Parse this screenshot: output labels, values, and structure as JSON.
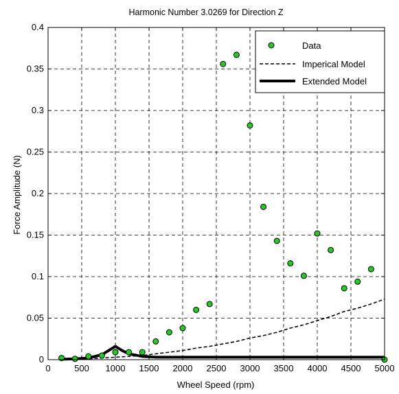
{
  "chart_data": {
    "type": "scatter",
    "title": "Harmonic Number 3.0269 for Direction Z",
    "xlabel": "Wheel Speed (rpm)",
    "ylabel": "Force Amplitude (N)",
    "xlim": [
      0,
      5000
    ],
    "ylim": [
      0,
      0.4
    ],
    "xticks": [
      "0",
      "500",
      "1000",
      "1500",
      "2000",
      "2500",
      "3000",
      "3500",
      "4000",
      "4500",
      "5000"
    ],
    "yticks": [
      "0",
      "0.05",
      "0.1",
      "0.15",
      "0.2",
      "0.25",
      "0.3",
      "0.35",
      "0.4"
    ],
    "grid": true,
    "legend_position": "top-right",
    "series": [
      {
        "name": "Data",
        "type": "scatter",
        "color": "#22cc22",
        "x": [
          200,
          400,
          600,
          800,
          1000,
          1200,
          1400,
          1600,
          1800,
          2000,
          2200,
          2400,
          2600,
          2800,
          3000,
          3200,
          3400,
          3600,
          3800,
          4000,
          4200,
          4400,
          4600,
          4800,
          5000
        ],
        "y": [
          0.002,
          0.001,
          0.004,
          0.005,
          0.009,
          0.009,
          0.009,
          0.022,
          0.033,
          0.038,
          0.06,
          0.067,
          0.356,
          0.367,
          0.282,
          0.184,
          0.143,
          0.116,
          0.101,
          0.152,
          0.132,
          0.086,
          0.094,
          0.109,
          0.0
        ]
      },
      {
        "name": "Imperical Model",
        "type": "line",
        "style": "dashed",
        "color": "#000000",
        "x": [
          200,
          400,
          600,
          800,
          1000,
          1200,
          1400,
          1600,
          1800,
          2000,
          2200,
          2400,
          2600,
          2800,
          3000,
          3200,
          3400,
          3600,
          3800,
          4000,
          4200,
          4400,
          4600,
          4800,
          5000
        ],
        "y": [
          0.0,
          0.0005,
          0.001,
          0.002,
          0.003,
          0.004,
          0.005,
          0.007,
          0.009,
          0.011,
          0.014,
          0.016,
          0.019,
          0.022,
          0.026,
          0.029,
          0.033,
          0.038,
          0.042,
          0.047,
          0.052,
          0.058,
          0.062,
          0.067,
          0.073
        ]
      },
      {
        "name": "Extended Model",
        "type": "line",
        "style": "solid-thick",
        "color": "#000000",
        "x": [
          200,
          400,
          600,
          800,
          900,
          1000,
          1100,
          1200,
          1400,
          1600,
          2000,
          2500,
          3000,
          3500,
          4000,
          4500,
          5000
        ],
        "y": [
          0.0005,
          0.001,
          0.002,
          0.006,
          0.011,
          0.016,
          0.011,
          0.007,
          0.004,
          0.003,
          0.003,
          0.003,
          0.003,
          0.003,
          0.003,
          0.003,
          0.003
        ]
      }
    ]
  }
}
